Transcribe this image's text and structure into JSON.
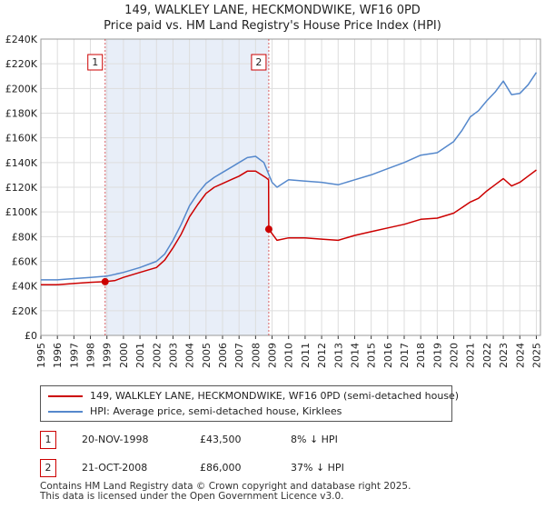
{
  "chart_data": {
    "type": "line",
    "title": "149, WALKLEY LANE, HECKMONDWIKE, WF16 0PD",
    "subtitle": "Price paid vs. HM Land Registry's House Price Index (HPI)",
    "ylim": [
      0,
      240000
    ],
    "xlim": [
      1995,
      2025.25
    ],
    "y_ticks": [
      0,
      20000,
      40000,
      60000,
      80000,
      100000,
      120000,
      140000,
      160000,
      180000,
      200000,
      220000,
      240000
    ],
    "y_tick_labels": [
      "£0",
      "£20K",
      "£40K",
      "£60K",
      "£80K",
      "£100K",
      "£120K",
      "£140K",
      "£160K",
      "£180K",
      "£200K",
      "£220K",
      "£240K"
    ],
    "x_ticks": [
      1995,
      1996,
      1997,
      1998,
      1999,
      2000,
      2001,
      2002,
      2003,
      2004,
      2005,
      2006,
      2007,
      2008,
      2009,
      2010,
      2011,
      2012,
      2013,
      2014,
      2015,
      2016,
      2017,
      2018,
      2019,
      2020,
      2021,
      2022,
      2023,
      2024,
      2025
    ],
    "x_tick_labels": [
      "1995",
      "1996",
      "1997",
      "1998",
      "1999",
      "2000",
      "2001",
      "2002",
      "2003",
      "2004",
      "2005",
      "2006",
      "2007",
      "2008",
      "2009",
      "2010",
      "2011",
      "2012",
      "2013",
      "2014",
      "2015",
      "2016",
      "2017",
      "2018",
      "2019",
      "2020",
      "2021",
      "2022",
      "2023",
      "2024",
      "2025"
    ],
    "shaded_period": [
      1998.89,
      2008.8
    ],
    "series": [
      {
        "name": "149, WALKLEY LANE, HECKMONDWIKE, WF16 0PD (semi-detached house)",
        "color": "#cc0000",
        "x": [
          1995,
          1996,
          1997,
          1998,
          1998.89,
          1999.5,
          2000,
          2001,
          2002,
          2002.5,
          2003,
          2003.5,
          2004,
          2004.5,
          2005,
          2005.5,
          2006,
          2006.5,
          2007,
          2007.5,
          2008,
          2008.6,
          2008.79,
          2008.8,
          2009.3,
          2010,
          2011,
          2012,
          2013,
          2014,
          2015,
          2016,
          2017,
          2018,
          2019,
          2020,
          2021,
          2021.5,
          2022,
          2022.5,
          2023,
          2023.5,
          2024,
          2024.5,
          2025
        ],
        "values": [
          41000,
          41000,
          42000,
          43000,
          43500,
          44500,
          47000,
          51000,
          55000,
          61000,
          71000,
          82000,
          96000,
          106000,
          115000,
          120000,
          123000,
          126000,
          129000,
          133000,
          133000,
          128000,
          126000,
          86000,
          77000,
          79000,
          79000,
          78000,
          77000,
          81000,
          84000,
          87000,
          90000,
          94000,
          95000,
          99000,
          108000,
          111000,
          117000,
          122000,
          127000,
          121000,
          124000,
          129000,
          134000
        ]
      },
      {
        "name": "HPI: Average price, semi-detached house, Kirklees",
        "color": "#5588cc",
        "x": [
          1995,
          1996,
          1997,
          1998,
          1999,
          2000,
          2001,
          2002,
          2002.5,
          2003,
          2003.5,
          2004,
          2004.5,
          2005,
          2005.5,
          2006,
          2006.5,
          2007,
          2007.5,
          2008,
          2008.5,
          2009,
          2009.3,
          2010,
          2011,
          2012,
          2013,
          2014,
          2015,
          2016,
          2017,
          2018,
          2019,
          2020,
          2020.5,
          2021,
          2021.5,
          2022,
          2022.5,
          2023,
          2023.5,
          2024,
          2024.5,
          2025
        ],
        "values": [
          45000,
          45000,
          46000,
          47000,
          48000,
          51000,
          55000,
          60000,
          66000,
          77000,
          90000,
          105000,
          115000,
          123000,
          128000,
          132000,
          136000,
          140000,
          144000,
          145000,
          140000,
          124000,
          120000,
          126000,
          125000,
          124000,
          122000,
          126000,
          130000,
          135000,
          140000,
          146000,
          148000,
          157000,
          166000,
          177000,
          182000,
          190000,
          197000,
          206000,
          195000,
          196000,
          203000,
          213000
        ]
      }
    ],
    "sales": [
      {
        "label": "1",
        "x": 1998.89,
        "value": 43500
      },
      {
        "label": "2",
        "x": 2008.8,
        "value": 86000
      }
    ]
  },
  "legend": {
    "series1": "149, WALKLEY LANE, HECKMONDWIKE, WF16 0PD (semi-detached house)",
    "series2": "HPI: Average price, semi-detached house, Kirklees"
  },
  "sales_table": [
    {
      "num": "1",
      "date": "20-NOV-1998",
      "price": "£43,500",
      "hpi": "8% ↓ HPI"
    },
    {
      "num": "2",
      "date": "21-OCT-2008",
      "price": "£86,000",
      "hpi": "37% ↓ HPI"
    }
  ],
  "footer": {
    "line1": "Contains HM Land Registry data © Crown copyright and database right 2025.",
    "line2": "This data is licensed under the Open Government Licence v3.0."
  },
  "colors": {
    "price": "#cc0000",
    "hpi": "#5588cc",
    "shade": "#e8eef8"
  }
}
